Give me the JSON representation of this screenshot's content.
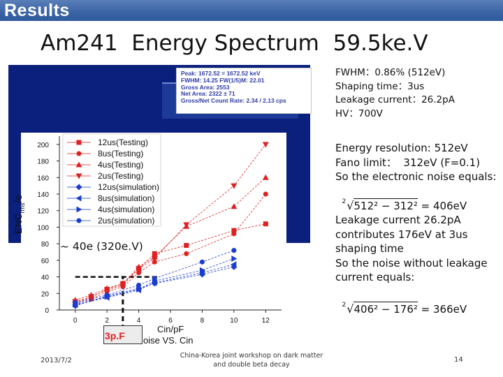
{
  "header": {
    "label": "Results"
  },
  "slide": {
    "title": "Am241  Energy Spectrum  59.5ke.V"
  },
  "spectrum_popup": {
    "lines": [
      "Peak: 1672.52 = 1672.52 keV",
      "FWHM: 14.25  FW(1/5)M: 22.01",
      "Gross Area: 2553",
      "Net Area: 2322  ± 71",
      "Gross/Net Count Rate: 2.34 / 2.13 cps"
    ]
  },
  "info": {
    "fwhm": "FWHM：0.86% (512eV)",
    "shaping": "Shaping time：3us",
    "leakage": "Leakage current：26.2pA",
    "hv": "HV：700V"
  },
  "calc": {
    "energy_res": "Energy resolution: 512eV",
    "fano": "Fano limit：  312eV (F=0.1)",
    "so_line": "So the electronic noise equals:",
    "eq1_root": "2",
    "eq1_body": "512² − 312²",
    "eq1_result": " = 406eV",
    "leak1": "Leakage current 26.2pA",
    "leak2": "contributes 176eV at 3us",
    "leak3": "shaping time",
    "leak4": "So the noise without leakage",
    "leak5": "current equals:",
    "eq2_root": "2",
    "eq2_body": "406² − 176²",
    "eq2_result": " = 366eV"
  },
  "chart": {
    "ylabel_main": "ENC",
    "ylabel_sub": "rms",
    "ylabel_tail": "/e",
    "annotation": "~ 40e (320e.V)",
    "cap_label": "3p.F",
    "xlabel": "Cin/pF",
    "title_fragment": "oise VS. Cin"
  },
  "chart_data": {
    "type": "scatter",
    "xlabel": "Cin/pF",
    "ylabel": "ENCrms/e",
    "xlim": [
      -1,
      13
    ],
    "ylim": [
      0,
      210
    ],
    "xticks": [
      0,
      2,
      4,
      6,
      8,
      10,
      12
    ],
    "yticks": [
      0,
      20,
      40,
      60,
      80,
      100,
      120,
      140,
      160,
      180,
      200
    ],
    "legend_position": "top-left",
    "series": [
      {
        "name": "12us(Testing)",
        "color": "#e02020",
        "marker": "square",
        "x": [
          0,
          1,
          2,
          3,
          4,
          5,
          7,
          10,
          12
        ],
        "y": [
          10,
          15,
          25,
          32,
          50,
          68,
          78,
          96,
          104
        ]
      },
      {
        "name": "8us(Testing)",
        "color": "#e02020",
        "marker": "circle",
        "x": [
          0,
          1,
          2,
          3,
          4,
          5,
          7,
          10,
          12
        ],
        "y": [
          8,
          13,
          22,
          28,
          45,
          58,
          68,
          92,
          140
        ]
      },
      {
        "name": "4us(Testing)",
        "color": "#e02020",
        "marker": "triangle-up",
        "x": [
          0,
          1,
          2,
          3,
          4,
          5,
          7,
          10,
          12
        ],
        "y": [
          12,
          18,
          26,
          32,
          52,
          64,
          101,
          125,
          160
        ]
      },
      {
        "name": "2us(Testing)",
        "color": "#e02020",
        "marker": "triangle-down",
        "x": [
          0,
          1,
          2,
          3,
          4,
          5,
          7,
          10,
          12
        ],
        "y": [
          10,
          16,
          24,
          30,
          50,
          62,
          103,
          150,
          200
        ]
      },
      {
        "name": "12us(simulation)",
        "color": "#1a3ccf",
        "marker": "diamond",
        "x": [
          0,
          2,
          4,
          5,
          8,
          10
        ],
        "y": [
          5,
          17,
          26,
          32,
          43,
          52
        ]
      },
      {
        "name": "8us(simulation)",
        "color": "#1a3ccf",
        "marker": "triangle-left",
        "x": [
          0,
          2,
          4,
          5,
          8,
          10
        ],
        "y": [
          6,
          15,
          24,
          33,
          45,
          55
        ]
      },
      {
        "name": "4us(simulation)",
        "color": "#1a3ccf",
        "marker": "triangle-right",
        "x": [
          0,
          2,
          4,
          5,
          8,
          10
        ],
        "y": [
          7,
          16,
          25,
          35,
          48,
          62
        ]
      },
      {
        "name": "2us(simulation)",
        "color": "#1a3ccf",
        "marker": "circle",
        "x": [
          0,
          2,
          4,
          5,
          8,
          10
        ],
        "y": [
          9,
          18,
          30,
          38,
          58,
          72
        ]
      }
    ]
  },
  "footer": {
    "date": "2013/7/2",
    "event_line1": "China-Korea joint workshop on dark matter",
    "event_line2": "and double beta decay",
    "page": "14"
  }
}
